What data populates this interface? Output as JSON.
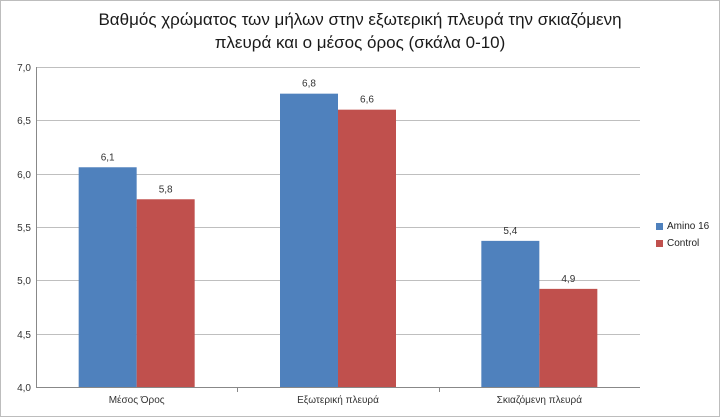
{
  "chart_data": {
    "type": "bar",
    "title_lines": [
      "Βαθμός χρώματος των μήλων στην εξωτερική πλευρά την σκιαζόμενη",
      "πλευρά και ο μέσος όρος (σκάλα 0-10)"
    ],
    "categories": [
      "Μέσος Όρος",
      "Εξωτερική πλευρά",
      "Σκιαζόμενη  πλευρά"
    ],
    "series": [
      {
        "name": "Amino 16",
        "values": [
          6.06,
          6.75,
          5.37
        ],
        "labels": [
          "6,1",
          "6,8",
          "5,4"
        ],
        "color": "#4f81bd"
      },
      {
        "name": "Control",
        "values": [
          5.76,
          6.6,
          4.92
        ],
        "labels": [
          "5,8",
          "6,6",
          "4,9"
        ],
        "color": "#c0504d"
      }
    ],
    "ylim": [
      4.0,
      7.0
    ],
    "yticks": [
      "4,0",
      "4,5",
      "5,0",
      "5,5",
      "6,0",
      "6,5",
      "7,0"
    ],
    "ytick_values": [
      4.0,
      4.5,
      5.0,
      5.5,
      6.0,
      6.5,
      7.0
    ],
    "grid": true,
    "legend_position": "right"
  }
}
